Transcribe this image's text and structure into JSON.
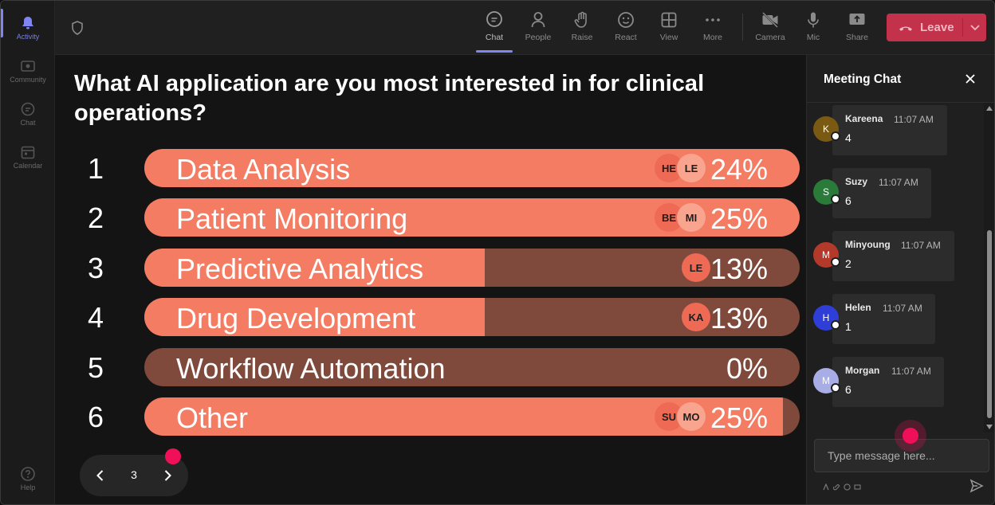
{
  "rail": {
    "items": [
      {
        "label": "Activity",
        "icon": "bell-icon"
      },
      {
        "label": "Community",
        "icon": "community-icon"
      },
      {
        "label": "Chat",
        "icon": "chat-icon"
      },
      {
        "label": "Calendar",
        "icon": "calendar-icon"
      }
    ],
    "help_label": "Help"
  },
  "toolbar": {
    "chat": "Chat",
    "people": "People",
    "raise": "Raise",
    "react": "React",
    "view": "View",
    "more": "More",
    "camera": "Camera",
    "mic": "Mic",
    "share": "Share",
    "leave": "Leave"
  },
  "poll": {
    "question": "What AI application are you most interested in for clinical operations?",
    "options": [
      {
        "num": "1",
        "label": "Data Analysis",
        "pct_text": "24%",
        "fill": 1.0,
        "avatars": [
          "HE",
          "LE"
        ]
      },
      {
        "num": "2",
        "label": "Patient Monitoring",
        "pct_text": "25%",
        "fill": 1.0,
        "avatars": [
          "BE",
          "MI"
        ]
      },
      {
        "num": "3",
        "label": "Predictive Analytics",
        "pct_text": "13%",
        "fill": 0.52,
        "avatars": [
          "LE"
        ]
      },
      {
        "num": "4",
        "label": "Drug Development",
        "pct_text": "13%",
        "fill": 0.52,
        "avatars": [
          "KA"
        ]
      },
      {
        "num": "5",
        "label": "Workflow Automation",
        "pct_text": "0%",
        "fill": 0.0,
        "avatars": []
      },
      {
        "num": "6",
        "label": "Other",
        "pct_text": "25%",
        "fill": 0.974,
        "avatars": [
          "SU",
          "MO"
        ]
      }
    ],
    "page": "3"
  },
  "chat": {
    "title": "Meeting Chat",
    "messages": [
      {
        "initial": "K",
        "name": "Kareena",
        "time": "11:07 AM",
        "text": "4",
        "color": "#7a5a12"
      },
      {
        "initial": "S",
        "name": "Suzy",
        "time": "11:07 AM",
        "text": "6",
        "color": "#2a7a3a"
      },
      {
        "initial": "M",
        "name": "Minyoung",
        "time": "11:07 AM",
        "text": "2",
        "color": "#b33a2a"
      },
      {
        "initial": "H",
        "name": "Helen",
        "time": "11:07 AM",
        "text": "1",
        "color": "#2f3ed6"
      },
      {
        "initial": "M",
        "name": "Morgan",
        "time": "11:07 AM",
        "text": "6",
        "color": "#a9ade6"
      }
    ],
    "input_placeholder": "Type message here..."
  },
  "colors": {
    "accent": "#7f85f5",
    "leave": "#c4314b",
    "bar_fill": "#f47c62",
    "bar_track": "#7f4a3b",
    "cursor": "#f0105a"
  }
}
